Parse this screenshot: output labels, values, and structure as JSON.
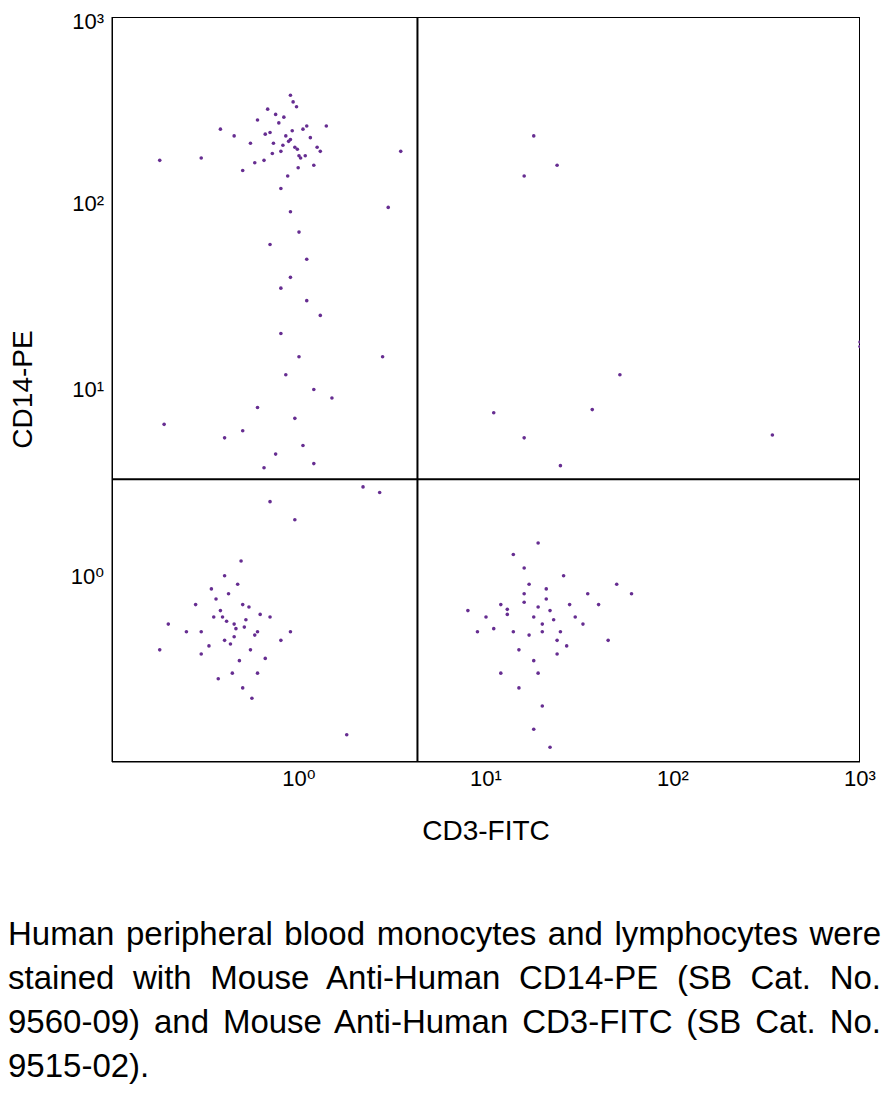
{
  "chart_data": {
    "type": "scatter",
    "x_label": "CD3-FITC",
    "y_label": "CD14-PE",
    "caption": "Human peripheral blood monocytes and lymphocytes were stained with Mouse Anti-Human CD14-PE (SB Cat. No. 9560-09) and Mouse Anti-Human CD3-FITC (SB Cat. No. 9515-02).",
    "log": true,
    "color": "#662d91",
    "xlim": [
      0.1,
      1000
    ],
    "ylim": [
      0.1,
      1000
    ],
    "xticks": [
      {
        "value": 1,
        "label": "10⁰"
      },
      {
        "value": 10,
        "label": "10¹"
      },
      {
        "value": 100,
        "label": "10²"
      },
      {
        "value": 1000,
        "label": "10³"
      }
    ],
    "yticks": [
      {
        "value": 1,
        "label": "10⁰"
      },
      {
        "value": 10,
        "label": "10¹"
      },
      {
        "value": 100,
        "label": "10²"
      },
      {
        "value": 1000,
        "label": "10³"
      }
    ],
    "reference_lines": {
      "x": 4.3,
      "y": 3.3
    },
    "series": [
      {
        "x": [
          0.55,
          0.7,
          0.8,
          0.9,
          1.0,
          1.1,
          0.65,
          0.75,
          0.85,
          0.95,
          1.05,
          1.2,
          0.6,
          0.72,
          0.88,
          0.98,
          1.15,
          0.5,
          0.68,
          0.82,
          0.92,
          1.02,
          1.3,
          0.78,
          0.87,
          0.97,
          0.45,
          1.4,
          0.58,
          0.73,
          0.93,
          1.08,
          0.83,
          0.66,
          0.99,
          1.25,
          0.38,
          0.3,
          0.9,
          0.8
        ],
        "values": [
          210,
          240,
          190,
          220,
          180,
          260,
          170,
          300,
          230,
          200,
          250,
          160,
          280,
          185,
          215,
          195,
          225,
          150,
          320,
          205,
          245,
          175,
          190,
          270,
          140,
          330,
          230,
          260,
          165,
          210,
          350,
          180,
          290,
          235,
          155,
          200,
          250,
          175,
          380,
          120
        ]
      },
      {
        "x": [
          0.7,
          0.9,
          1.1,
          0.8,
          1.0,
          1.2,
          0.6,
          0.95,
          1.05,
          0.75,
          0.85,
          1.3,
          0.5,
          1.1,
          0.9,
          0.65,
          1.5,
          0.8,
          1.0,
          2.2,
          0.4,
          1.2,
          0.7,
          0.95
        ],
        "values": [
          60,
          40,
          30,
          20,
          15,
          10,
          8,
          7,
          5,
          4.5,
          12,
          25,
          6,
          50,
          90,
          3.8,
          9,
          35,
          70,
          3,
          5.5,
          4,
          2.5,
          2
        ]
      },
      {
        "x": [
          0.3,
          0.35,
          0.4,
          0.45,
          0.5,
          0.55,
          0.6,
          0.42,
          0.48,
          0.38,
          0.52,
          0.33,
          0.7,
          0.25,
          0.44,
          0.47,
          0.58,
          0.36,
          0.8,
          0.2,
          0.4,
          0.5,
          0.62,
          0.3,
          0.46,
          0.54,
          0.43,
          0.37,
          0.66,
          0.28,
          0.49,
          0.41,
          0.56,
          0.9,
          0.18,
          0.45,
          0.34,
          0.6,
          0.51,
          0.39
        ],
        "values": [
          0.5,
          0.6,
          0.45,
          0.55,
          0.7,
          0.4,
          0.5,
          0.8,
          0.35,
          0.65,
          0.58,
          0.42,
          0.6,
          0.5,
          0.3,
          0.9,
          0.48,
          0.75,
          0.45,
          0.55,
          1.0,
          0.25,
          0.62,
          0.38,
          0.52,
          0.68,
          0.43,
          0.28,
          0.36,
          0.7,
          1.2,
          0.57,
          0.22,
          0.5,
          0.4,
          0.47,
          0.85,
          0.3,
          0.53,
          0.6
        ]
      },
      {
        "x": [
          10,
          12,
          14,
          16,
          18,
          20,
          22,
          25,
          28,
          15,
          17,
          19,
          21,
          24,
          13,
          30,
          35,
          11,
          9,
          40,
          16,
          18,
          20,
          23,
          27,
          14,
          19,
          22,
          17,
          50,
          26,
          12,
          15,
          21,
          33,
          18,
          24,
          16,
          20,
          60,
          8,
          45,
          19,
          13
        ],
        "values": [
          0.6,
          0.7,
          0.5,
          0.8,
          0.6,
          0.55,
          0.65,
          0.5,
          0.7,
          0.4,
          0.9,
          0.3,
          0.75,
          0.45,
          0.62,
          0.6,
          0.8,
          0.52,
          0.5,
          0.7,
          1.1,
          0.35,
          0.2,
          0.58,
          0.42,
          1.3,
          0.68,
          0.12,
          0.48,
          0.9,
          1.0,
          0.3,
          0.25,
          0.85,
          0.55,
          0.15,
          0.38,
          0.72,
          0.5,
          0.8,
          0.65,
          0.45,
          1.5,
          0.66
        ]
      },
      {
        "x": [
          16,
          18,
          24,
          11,
          16,
          25,
          37,
          52,
          340,
          1000,
          1000,
          0.18,
          0.19,
          3.5,
          3,
          2.8,
          2.7,
          1.8
        ],
        "values": [
          140,
          230,
          160,
          7.5,
          5.5,
          3.9,
          7.8,
          12,
          5.7,
          17,
          18,
          170,
          6.5,
          190,
          95,
          15,
          2.8,
          0.14
        ]
      }
    ]
  }
}
